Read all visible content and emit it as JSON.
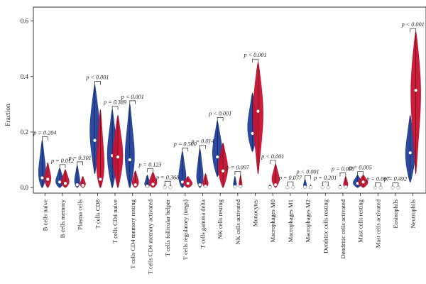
{
  "chart_data": {
    "type": "violin",
    "ylabel": "Fraction",
    "ylim": [
      -0.02,
      0.65
    ],
    "yticks": [
      "0.0",
      "0.2",
      "0.4",
      "0.6"
    ],
    "colors": {
      "group1": "#1f3f9a",
      "group2": "#c8102e"
    },
    "categories": [
      {
        "name": "B cells naive",
        "p": "p = 0.204",
        "g1": {
          "min": 0.0,
          "max": 0.17,
          "median": 0.035,
          "peak": 0.02,
          "hw": 0.38
        },
        "g2": {
          "min": 0.0,
          "max": 0.09,
          "median": 0.03,
          "peak": 0.02,
          "hw": 0.3
        }
      },
      {
        "name": "B cells memory",
        "p": "p = 0.012",
        "g1": {
          "min": 0.0,
          "max": 0.07,
          "median": 0.02,
          "peak": 0.01,
          "hw": 0.4
        },
        "g2": {
          "min": 0.0,
          "max": 0.065,
          "median": 0.015,
          "peak": 0.01,
          "hw": 0.38
        }
      },
      {
        "name": "Plasma cells",
        "p": "p = 0.301",
        "g1": {
          "min": 0.0,
          "max": 0.08,
          "median": 0.01,
          "peak": 0.005,
          "hw": 0.3
        },
        "g2": {
          "min": 0.0,
          "max": 0.04,
          "median": 0.008,
          "peak": 0.005,
          "hw": 0.28
        }
      },
      {
        "name": "T cells CD8",
        "p": "p < 0.001",
        "g1": {
          "min": 0.05,
          "max": 0.37,
          "median": 0.17,
          "peak": 0.2,
          "hw": 0.4
        },
        "g2": {
          "min": 0.0,
          "max": 0.28,
          "median": 0.03,
          "peak": 0.02,
          "hw": 0.42
        }
      },
      {
        "name": "T cells CD4 naive",
        "p": "p = 0.389",
        "g1": {
          "min": 0.0,
          "max": 0.28,
          "median": 0.115,
          "peak": 0.1,
          "hw": 0.42
        },
        "g2": {
          "min": 0.0,
          "max": 0.26,
          "median": 0.11,
          "peak": 0.1,
          "hw": 0.42
        }
      },
      {
        "name": "T cells CD4 memory resting",
        "p": "p < 0.001",
        "g1": {
          "min": 0.0,
          "max": 0.3,
          "median": 0.1,
          "peak": 0.08,
          "hw": 0.42
        },
        "g2": {
          "min": 0.0,
          "max": 0.06,
          "median": 0.01,
          "peak": 0.005,
          "hw": 0.35
        }
      },
      {
        "name": "T cells CD4 memory activated",
        "p": "p = 0.123",
        "g1": {
          "min": 0.0,
          "max": 0.045,
          "median": 0.005,
          "peak": 0.002,
          "hw": 0.3
        },
        "g2": {
          "min": 0.0,
          "max": 0.055,
          "median": 0.012,
          "peak": 0.008,
          "hw": 0.4
        }
      },
      {
        "name": "T cells follicular helper",
        "p": "p = 0.368",
        "g1": {
          "min": 0.0,
          "max": 0.01,
          "median": 0.001,
          "peak": 0.0,
          "hw": 0.12
        },
        "g2": {
          "min": 0.0,
          "max": 0.01,
          "median": 0.001,
          "peak": 0.0,
          "hw": 0.12
        }
      },
      {
        "name": "T cells regulatory (tregs)",
        "p": "p = 0.500",
        "g1": {
          "min": 0.0,
          "max": 0.13,
          "median": 0.02,
          "peak": 0.01,
          "hw": 0.4
        },
        "g2": {
          "min": 0.0,
          "max": 0.04,
          "median": 0.015,
          "peak": 0.01,
          "hw": 0.4
        }
      },
      {
        "name": "T cells gamma delta",
        "p": "p = 0.014",
        "g1": {
          "min": 0.0,
          "max": 0.14,
          "median": 0.01,
          "peak": 0.005,
          "hw": 0.38
        },
        "g2": {
          "min": 0.0,
          "max": 0.05,
          "median": 0.005,
          "peak": 0.003,
          "hw": 0.3
        }
      },
      {
        "name": "NK cells resting",
        "p": "p < 0.001",
        "g1": {
          "min": 0.04,
          "max": 0.24,
          "median": 0.11,
          "peak": 0.11,
          "hw": 0.42
        },
        "g2": {
          "min": 0.0,
          "max": 0.16,
          "median": 0.06,
          "peak": 0.06,
          "hw": 0.4
        }
      },
      {
        "name": "NK cells activated",
        "p": "p = 0.097",
        "g1": {
          "min": 0.0,
          "max": 0.04,
          "median": 0.003,
          "peak": 0.002,
          "hw": 0.18
        },
        "g2": {
          "min": 0.0,
          "max": 0.045,
          "median": 0.004,
          "peak": 0.002,
          "hw": 0.18
        }
      },
      {
        "name": "Monocytes",
        "p": "p < 0.001",
        "g1": {
          "min": 0.13,
          "max": 0.34,
          "median": 0.195,
          "peak": 0.2,
          "hw": 0.42
        },
        "g2": {
          "min": 0.05,
          "max": 0.45,
          "median": 0.275,
          "peak": 0.28,
          "hw": 0.42
        }
      },
      {
        "name": "Macrophages M0",
        "p": "p < 0.001",
        "g1": {
          "min": 0.0,
          "max": 0.01,
          "median": 0.001,
          "peak": 0.0,
          "hw": 0.18
        },
        "g2": {
          "min": 0.0,
          "max": 0.085,
          "median": 0.01,
          "peak": 0.02,
          "hw": 0.34
        }
      },
      {
        "name": "Macrophages M1",
        "p": "p = 0.077",
        "g1": {
          "min": 0.0,
          "max": 0.008,
          "median": 0.001,
          "peak": 0.0,
          "hw": 0.12
        },
        "g2": {
          "min": 0.0,
          "max": 0.008,
          "median": 0.001,
          "peak": 0.0,
          "hw": 0.12
        }
      },
      {
        "name": "Macrophages M2",
        "p": "p < 0.001",
        "g1": {
          "min": 0.0,
          "max": 0.03,
          "median": 0.002,
          "peak": 0.001,
          "hw": 0.18
        },
        "g2": {
          "min": 0.0,
          "max": 0.01,
          "median": 0.001,
          "peak": 0.0,
          "hw": 0.12
        }
      },
      {
        "name": "Dendritic cells resting",
        "p": "p = 0.201",
        "g1": {
          "min": 0.0,
          "max": 0.008,
          "median": 0.001,
          "peak": 0.0,
          "hw": 0.12
        },
        "g2": {
          "min": 0.0,
          "max": 0.008,
          "median": 0.001,
          "peak": 0.0,
          "hw": 0.12
        }
      },
      {
        "name": "Dendritic cells activated",
        "p": "p = 0.008",
        "g1": {
          "min": 0.0,
          "max": 0.01,
          "median": 0.001,
          "peak": 0.0,
          "hw": 0.15
        },
        "g2": {
          "min": 0.0,
          "max": 0.04,
          "median": 0.003,
          "peak": 0.002,
          "hw": 0.25
        }
      },
      {
        "name": "Mast cells resting",
        "p": "p = 0.005",
        "g1": {
          "min": 0.0,
          "max": 0.045,
          "median": 0.015,
          "peak": 0.012,
          "hw": 0.4
        },
        "g2": {
          "min": 0.0,
          "max": 0.045,
          "median": 0.02,
          "peak": 0.015,
          "hw": 0.4
        }
      },
      {
        "name": "Mast cells activated",
        "p": "p = 0.007",
        "g1": {
          "min": 0.0,
          "max": 0.004,
          "median": 0.0,
          "peak": 0.0,
          "hw": 0.1
        },
        "g2": {
          "min": 0.0,
          "max": 0.004,
          "median": 0.0,
          "peak": 0.0,
          "hw": 0.1
        }
      },
      {
        "name": "Eosinophils",
        "p": "p = 0.492",
        "g1": {
          "min": 0.0,
          "max": 0.004,
          "median": 0.0,
          "peak": 0.0,
          "hw": 0.1
        },
        "g2": {
          "min": 0.0,
          "max": 0.004,
          "median": 0.0,
          "peak": 0.0,
          "hw": 0.1
        }
      },
      {
        "name": "Neutrophils",
        "p": "p < 0.001",
        "g1": {
          "min": 0.02,
          "max": 0.26,
          "median": 0.125,
          "peak": 0.1,
          "hw": 0.4
        },
        "g2": {
          "min": 0.05,
          "max": 0.56,
          "median": 0.35,
          "peak": 0.37,
          "hw": 0.42
        }
      }
    ]
  }
}
